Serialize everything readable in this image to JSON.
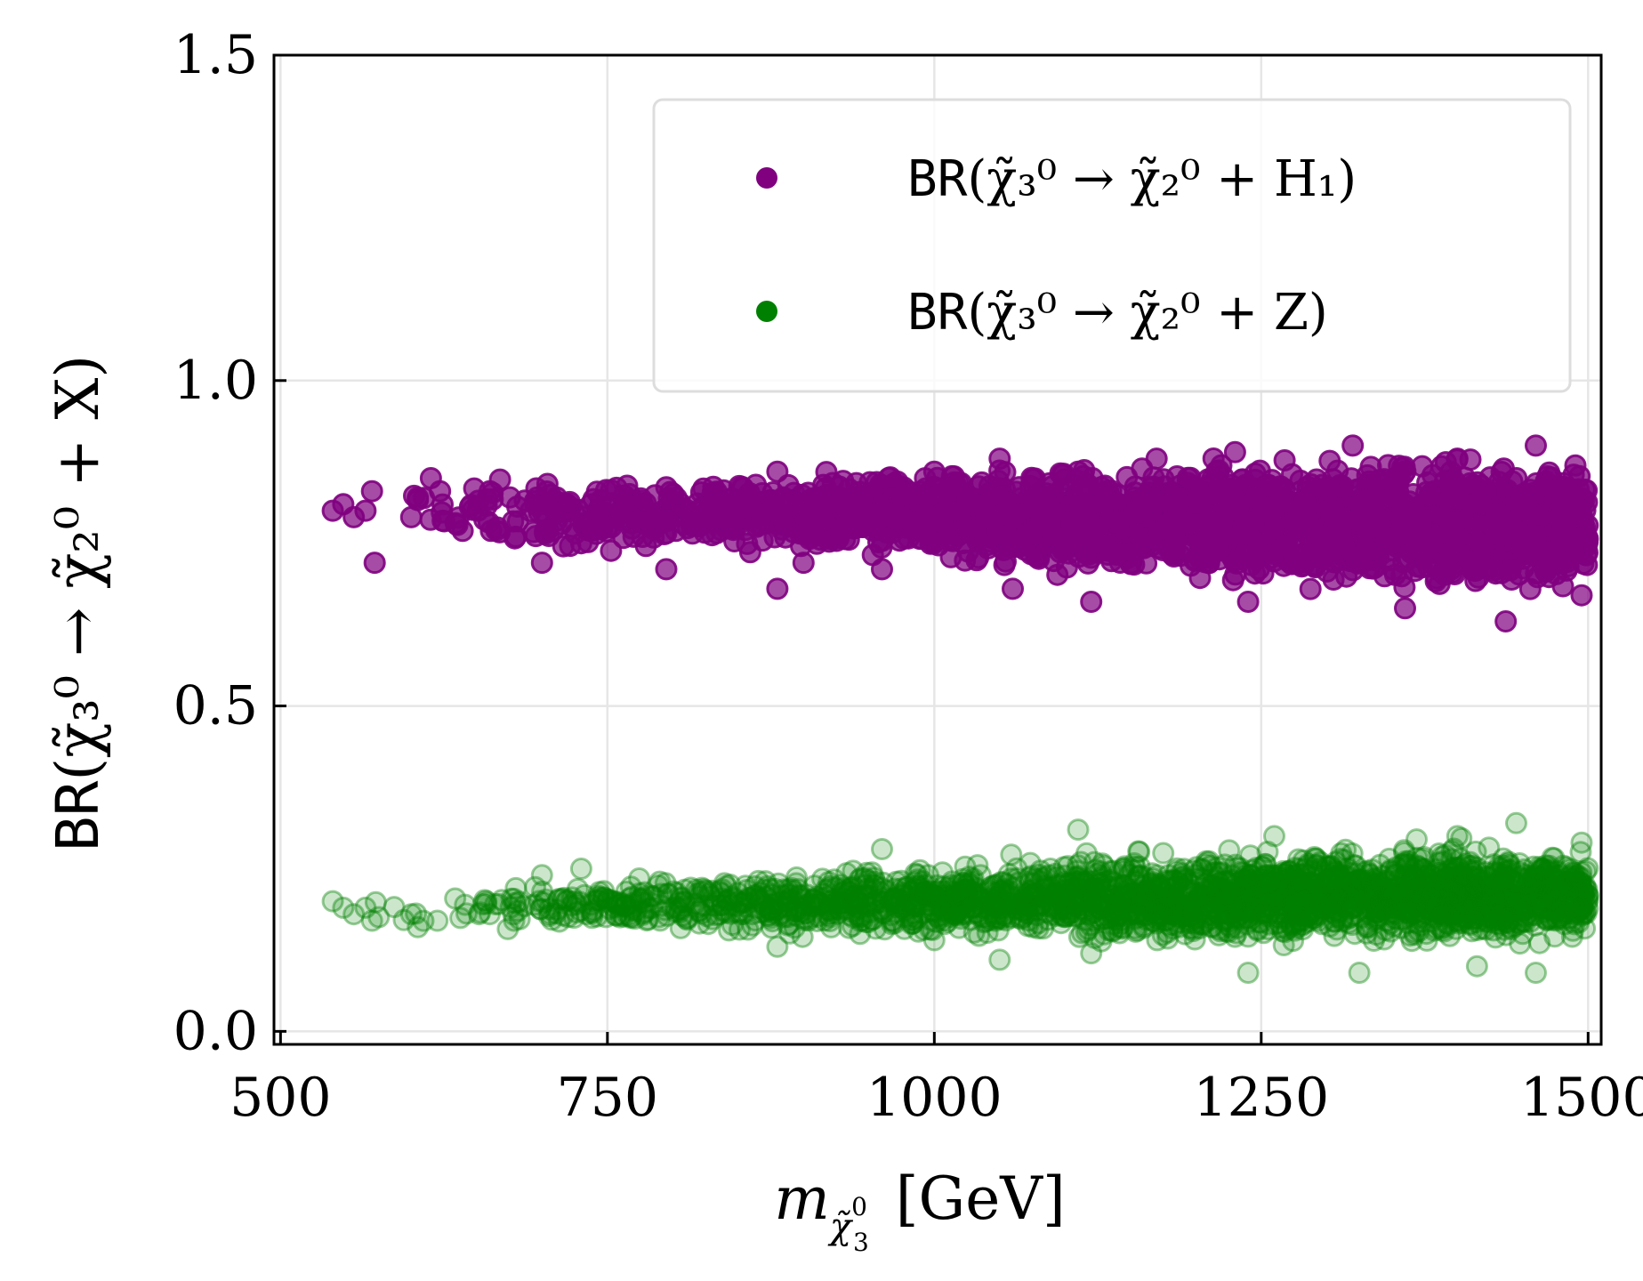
{
  "chart_data": {
    "type": "scatter",
    "title": "",
    "xlabel": {
      "symbol": "m",
      "sub_symbol": "χ̃",
      "sub_sup": "0",
      "sub_sub": "3",
      "unit": "[GeV]"
    },
    "ylabel": {
      "prefix": "BR",
      "text": "(χ̃₃⁰ → χ̃₂⁰ + X)"
    },
    "xlim": [
      495,
      1510
    ],
    "ylim": [
      -0.02,
      1.5
    ],
    "xticks": [
      500,
      750,
      1000,
      1250,
      1500
    ],
    "xtick_labels": [
      "500",
      "750",
      "1000",
      "1250",
      "1500"
    ],
    "yticks": [
      0.0,
      0.5,
      1.0,
      1.5
    ],
    "ytick_labels": [
      "0.0",
      "0.5",
      "1.0",
      "1.5"
    ],
    "grid": true,
    "legend_position": "top-right",
    "series": [
      {
        "name": "BR(χ̃₃⁰ → χ̃₂⁰ + H₁)",
        "legend_prefix": "BR",
        "legend_math": "(χ̃₃⁰ → χ̃₂⁰ + H₁)",
        "color": "#800080",
        "alpha": 0.7,
        "x_range": [
          535,
          1500
        ],
        "points": [
          [
            540,
            0.8
          ],
          [
            548,
            0.81
          ],
          [
            556,
            0.79
          ],
          [
            565,
            0.8
          ],
          [
            570,
            0.83
          ],
          [
            572,
            0.72
          ],
          [
            600,
            0.79
          ],
          [
            605,
            0.82
          ],
          [
            615,
            0.85
          ],
          [
            622,
            0.83
          ],
          [
            660,
            0.83
          ],
          [
            665,
            0.77
          ],
          [
            680,
            0.76
          ],
          [
            700,
            0.72
          ],
          [
            730,
            0.75
          ],
          [
            735,
            0.78
          ],
          [
            760,
            0.8
          ],
          [
            770,
            0.76
          ],
          [
            795,
            0.71
          ],
          [
            880,
            0.86
          ],
          [
            880,
            0.68
          ],
          [
            900,
            0.72
          ],
          [
            960,
            0.71
          ],
          [
            1000,
            0.86
          ],
          [
            1050,
            0.88
          ],
          [
            1060,
            0.68
          ],
          [
            1110,
            0.86
          ],
          [
            1120,
            0.66
          ],
          [
            1170,
            0.88
          ],
          [
            1230,
            0.89
          ],
          [
            1240,
            0.66
          ],
          [
            1320,
            0.9
          ],
          [
            1360,
            0.65
          ],
          [
            1400,
            0.88
          ],
          [
            1437,
            0.63
          ],
          [
            1460,
            0.9
          ],
          [
            1495,
            0.67
          ]
        ],
        "band": [
          [
            540,
            0.77,
            0.85
          ],
          [
            600,
            0.76,
            0.86
          ],
          [
            700,
            0.72,
            0.87
          ],
          [
            800,
            0.72,
            0.87
          ],
          [
            900,
            0.71,
            0.88
          ],
          [
            1000,
            0.7,
            0.88
          ],
          [
            1100,
            0.68,
            0.89
          ],
          [
            1200,
            0.67,
            0.9
          ],
          [
            1300,
            0.66,
            0.9
          ],
          [
            1400,
            0.65,
            0.91
          ],
          [
            1500,
            0.66,
            0.9
          ]
        ]
      },
      {
        "name": "BR(χ̃₃⁰ → χ̃₂⁰ + Z)",
        "legend_prefix": "BR",
        "legend_math": "(χ̃₃⁰ → χ̃₂⁰ + Z)",
        "color": "#008000",
        "alpha": 0.2,
        "x_range": [
          535,
          1500
        ],
        "points": [
          [
            540,
            0.2
          ],
          [
            548,
            0.19
          ],
          [
            556,
            0.18
          ],
          [
            565,
            0.19
          ],
          [
            570,
            0.17
          ],
          [
            600,
            0.18
          ],
          [
            605,
            0.16
          ],
          [
            620,
            0.17
          ],
          [
            660,
            0.18
          ],
          [
            680,
            0.22
          ],
          [
            700,
            0.24
          ],
          [
            730,
            0.25
          ],
          [
            740,
            0.2
          ],
          [
            790,
            0.23
          ],
          [
            880,
            0.13
          ],
          [
            960,
            0.28
          ],
          [
            1000,
            0.14
          ],
          [
            1050,
            0.11
          ],
          [
            1110,
            0.31
          ],
          [
            1120,
            0.12
          ],
          [
            1240,
            0.09
          ],
          [
            1260,
            0.3
          ],
          [
            1325,
            0.09
          ],
          [
            1400,
            0.3
          ],
          [
            1415,
            0.1
          ],
          [
            1445,
            0.32
          ],
          [
            1460,
            0.09
          ],
          [
            1495,
            0.29
          ]
        ],
        "band": [
          [
            540,
            0.16,
            0.21
          ],
          [
            600,
            0.15,
            0.22
          ],
          [
            700,
            0.15,
            0.24
          ],
          [
            800,
            0.14,
            0.25
          ],
          [
            900,
            0.13,
            0.26
          ],
          [
            1000,
            0.13,
            0.27
          ],
          [
            1100,
            0.12,
            0.29
          ],
          [
            1200,
            0.11,
            0.3
          ],
          [
            1300,
            0.11,
            0.31
          ],
          [
            1400,
            0.11,
            0.31
          ],
          [
            1500,
            0.11,
            0.3
          ]
        ]
      }
    ]
  }
}
